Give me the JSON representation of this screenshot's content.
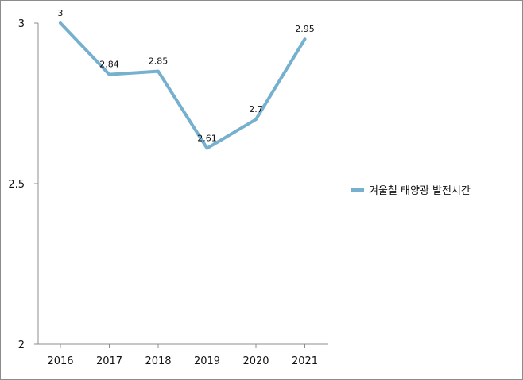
{
  "chart_data": {
    "type": "line",
    "title": "",
    "xlabel": "",
    "ylabel": "",
    "categories": [
      "2016",
      "2017",
      "2018",
      "2019",
      "2020",
      "2021"
    ],
    "ylim": [
      2,
      3
    ],
    "yticks": [
      "3",
      "2.5",
      "2"
    ],
    "ytick_values": [
      3,
      2.5,
      2
    ],
    "series": [
      {
        "name": "겨울철 태양광 발전시간",
        "values": [
          3,
          2.84,
          2.85,
          2.61,
          2.7,
          2.95
        ],
        "labels": [
          "3",
          "2.84",
          "2.85",
          "2.61",
          "2.7",
          "2.95"
        ],
        "color": "#76b0cf"
      }
    ],
    "legend_position": "right",
    "grid": false
  }
}
